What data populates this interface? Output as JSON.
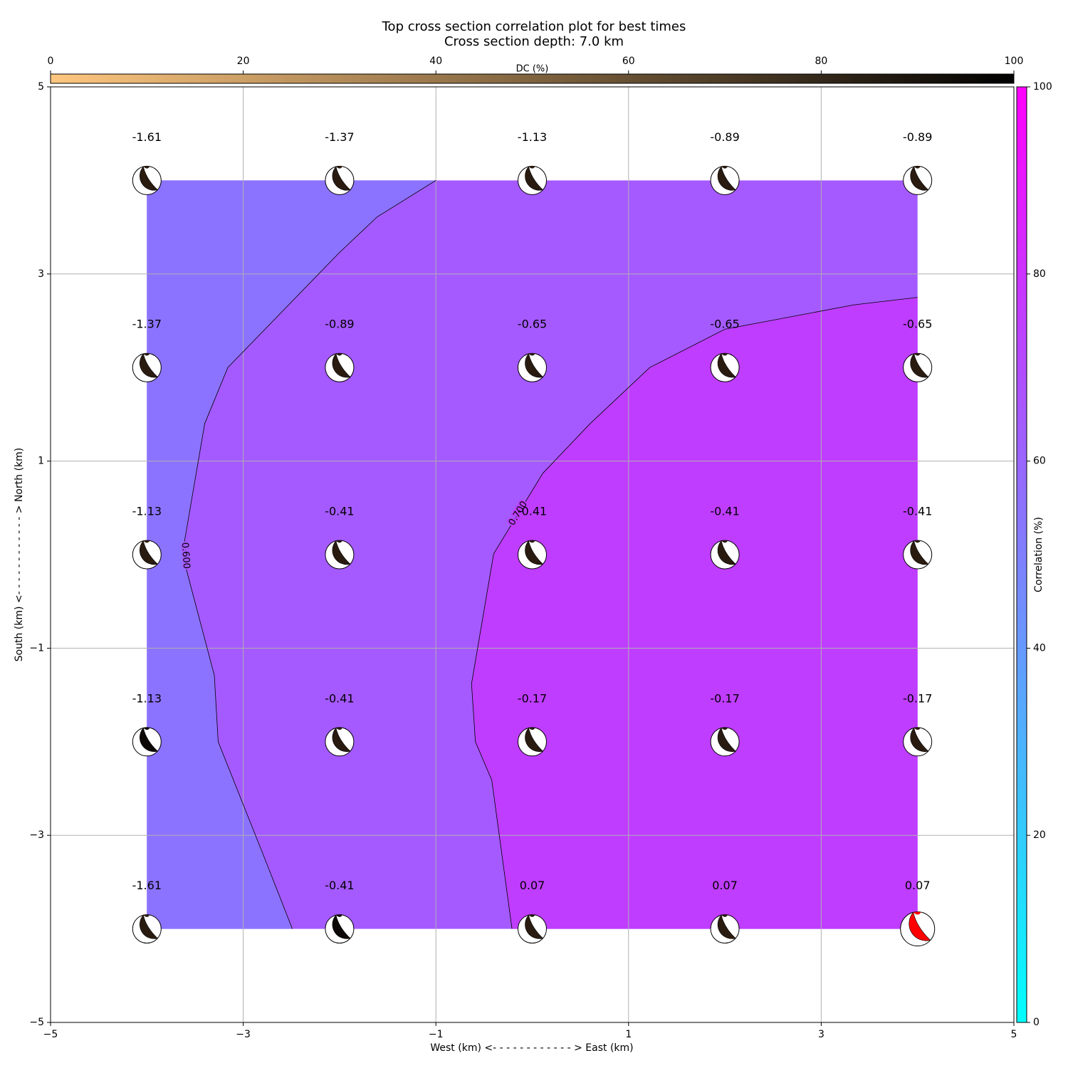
{
  "chart_data": {
    "type": "contour",
    "title": "Top cross section correlation plot for best times",
    "subtitle": "Cross section depth: 7.0 km",
    "xlabel": "West (km) <- - - - - - - - - - - - > East (km)",
    "ylabel": "South (km) <- - - - - - - - - - - - > North (km)",
    "xlim": [
      -5,
      5
    ],
    "ylim": [
      -5,
      5
    ],
    "xticks": [
      {
        "value": -5,
        "label": "−5"
      },
      {
        "value": -3,
        "label": "−3"
      },
      {
        "value": -1,
        "label": "−1"
      },
      1,
      3,
      5
    ],
    "yticks": [
      {
        "value": -5,
        "label": "−5"
      },
      {
        "value": -3,
        "label": "−3"
      },
      {
        "value": -1,
        "label": "−1"
      },
      1,
      3,
      5
    ],
    "grid": true,
    "fill_colors": [
      "#8c73ff",
      "#a55aff",
      "#bf3dff"
    ],
    "contours": [
      {
        "level": {
          "value": 0.6,
          "label": "0.600"
        },
        "x": [
          -1.0,
          -1.61,
          -2.01,
          -3.16,
          -3.4,
          -3.61,
          -3.59,
          -3.3,
          -3.26,
          -2.78,
          -2.49
        ],
        "y": [
          4.0,
          3.61,
          3.22,
          2.0,
          1.4,
          0.14,
          -0.16,
          -1.29,
          -2.0,
          -3.24,
          -4.0
        ]
      },
      {
        "level": {
          "value": 0.7,
          "label": "0.700"
        },
        "x": [
          4.0,
          3.34,
          2.0,
          1.22,
          0.6,
          0.11,
          -0.4,
          -0.63,
          -0.59,
          -0.42,
          -0.21
        ],
        "y": [
          2.75,
          2.67,
          2.41,
          2.0,
          1.4,
          0.87,
          0.01,
          -1.38,
          -2.0,
          -2.41,
          -4.0
        ]
      }
    ],
    "points": {
      "x": [
        -4,
        -2,
        0,
        2,
        4,
        -4,
        -2,
        0,
        2,
        4,
        -4,
        -2,
        0,
        2,
        4,
        -4,
        -2,
        0,
        2,
        4,
        -4,
        -2,
        0,
        2,
        4
      ],
      "y": [
        4,
        4,
        4,
        4,
        4,
        2,
        2,
        2,
        2,
        2,
        0,
        0,
        0,
        0,
        0,
        -2,
        -2,
        -2,
        -2,
        -2,
        -4,
        -4,
        -4,
        -4,
        -4
      ],
      "values": [
        -1.61,
        -1.37,
        -1.13,
        -0.89,
        -0.89,
        -1.37,
        -0.89,
        -0.65,
        -0.65,
        -0.65,
        -1.13,
        -0.41,
        -0.41,
        -0.41,
        -0.41,
        -1.13,
        -0.41,
        -0.17,
        -0.17,
        -0.17,
        -1.61,
        -0.41,
        0.07,
        0.07,
        0.07
      ],
      "colors": [
        "#2a1b10",
        "#2a1b10",
        "#2a1b10",
        "#2a1b10",
        "#2a1b10",
        "#2a1b10",
        "#2a1b10",
        "#2a1b10",
        "#2a1b10",
        "#2a1b10",
        "#2a1b10",
        "#2a1b10",
        "#2a1b10",
        "#2a1b10",
        "#2a1b10",
        "#0d0805",
        "#2a1b10",
        "#2a1b10",
        "#2a1b10",
        "#2a1b10",
        "#2a1b10",
        "#0d0805",
        "#2a1b10",
        "#2a1b10",
        "#ff0000"
      ]
    },
    "colorbars": [
      {
        "label": "DC (%)",
        "lim": [
          0,
          100
        ],
        "ticks": [
          0,
          20,
          40,
          60,
          80,
          100
        ],
        "colors": [
          "#ffc77f",
          "#000000"
        ]
      },
      {
        "label": "Correlation (%)",
        "lim": [
          0,
          100
        ],
        "ticks": [
          0,
          20,
          40,
          60,
          80,
          100
        ],
        "colors": [
          "#00ffff",
          "#ff00ff"
        ]
      }
    ]
  }
}
